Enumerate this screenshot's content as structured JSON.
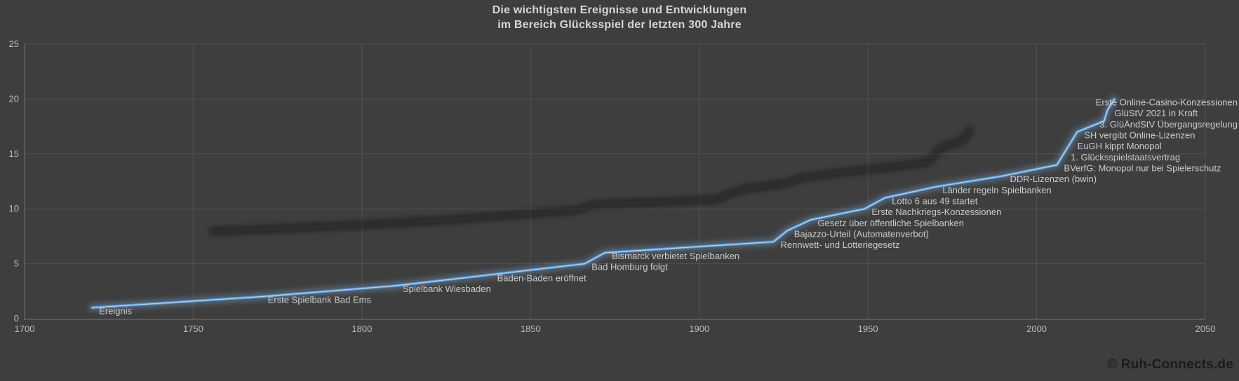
{
  "header": {
    "title_line1": "Die wichtigsten Ereignisse und Entwicklungen",
    "title_line2": "im Bereich Glücksspiel der letzten 300 Jahre"
  },
  "footer": {
    "copyright": "© Ruh-Connects.de"
  },
  "colors": {
    "background": "#3e3e3e",
    "gridline": "#535353",
    "axis_line": "#6b6b6b",
    "axis_text": "#bdbdbd",
    "title_text": "#d6d6d6",
    "event_label_text": "#cbcbcb",
    "line_main": "#5b9bd5",
    "line_glow": "#7badde",
    "line_core": "#c5ddf2",
    "line_shadow": "#111111",
    "footer_text": "#1c1c1c"
  },
  "chart_data": {
    "type": "line",
    "title": "Die wichtigsten Ereignisse und Entwicklungen im Bereich Glücksspiel der letzten 300 Jahre",
    "series_name": "Ereignis",
    "legend": "none",
    "grid": true,
    "xlabel": "",
    "ylabel": "",
    "x_axis": {
      "min": 1700,
      "max": 2050,
      "tick_step": 50,
      "ticks": [
        "1700",
        "1750",
        "1800",
        "1850",
        "1900",
        "1950",
        "2000",
        "2050"
      ]
    },
    "y_axis": {
      "min": 0,
      "max": 25,
      "tick_step": 5,
      "ticks": [
        "0",
        "5",
        "10",
        "15",
        "20",
        "25"
      ]
    },
    "points": [
      {
        "label": "Ereignis",
        "year": 1720,
        "count": 1
      },
      {
        "label": "Erste Spielbank Bad Ems",
        "year": 1770,
        "count": 2
      },
      {
        "label": "Spielbank Wiesbaden",
        "year": 1810,
        "count": 3
      },
      {
        "label": "Baden-Baden eröffnet",
        "year": 1838,
        "count": 4
      },
      {
        "label": "Bad Homburg folgt",
        "year": 1866,
        "count": 5
      },
      {
        "label": "Bismarck verbietet Spielbanken",
        "year": 1872,
        "count": 6
      },
      {
        "label": "Rennwett- und Lotteriegesetz",
        "year": 1922,
        "count": 7
      },
      {
        "label": "Bajazzo-Urteil (Automatenverbot)",
        "year": 1926,
        "count": 8
      },
      {
        "label": "Gesetz über öffentliche Spielbanken",
        "year": 1933,
        "count": 9
      },
      {
        "label": "Erste Nachkriegs-Konzessionen",
        "year": 1949,
        "count": 10
      },
      {
        "label": "Lotto 6 aus 49 startet",
        "year": 1955,
        "count": 11
      },
      {
        "label": "Länder regeln Spielbanken",
        "year": 1970,
        "count": 12
      },
      {
        "label": "DDR-Lizenzen (bwin)",
        "year": 1990,
        "count": 13
      },
      {
        "label": "BVerfG: Monopol nur bei Spielerschutz",
        "year": 2006,
        "count": 14
      },
      {
        "label": "1. Glücksspielstaatsvertrag",
        "year": 2008,
        "count": 15
      },
      {
        "label": "EuGH kippt Monopol",
        "year": 2010,
        "count": 16
      },
      {
        "label": "SH vergibt Online-Lizenzen",
        "year": 2012,
        "count": 17
      },
      {
        "label": "3. GlüÄndStV Übergangsregelung",
        "year": 2020,
        "count": 18
      },
      {
        "label": "GlüStV 2021 in Kraft",
        "year": 2021,
        "count": 19
      },
      {
        "label": "Erste Online-Casino-Konzessionen",
        "year": 2023,
        "count": 20
      }
    ]
  }
}
